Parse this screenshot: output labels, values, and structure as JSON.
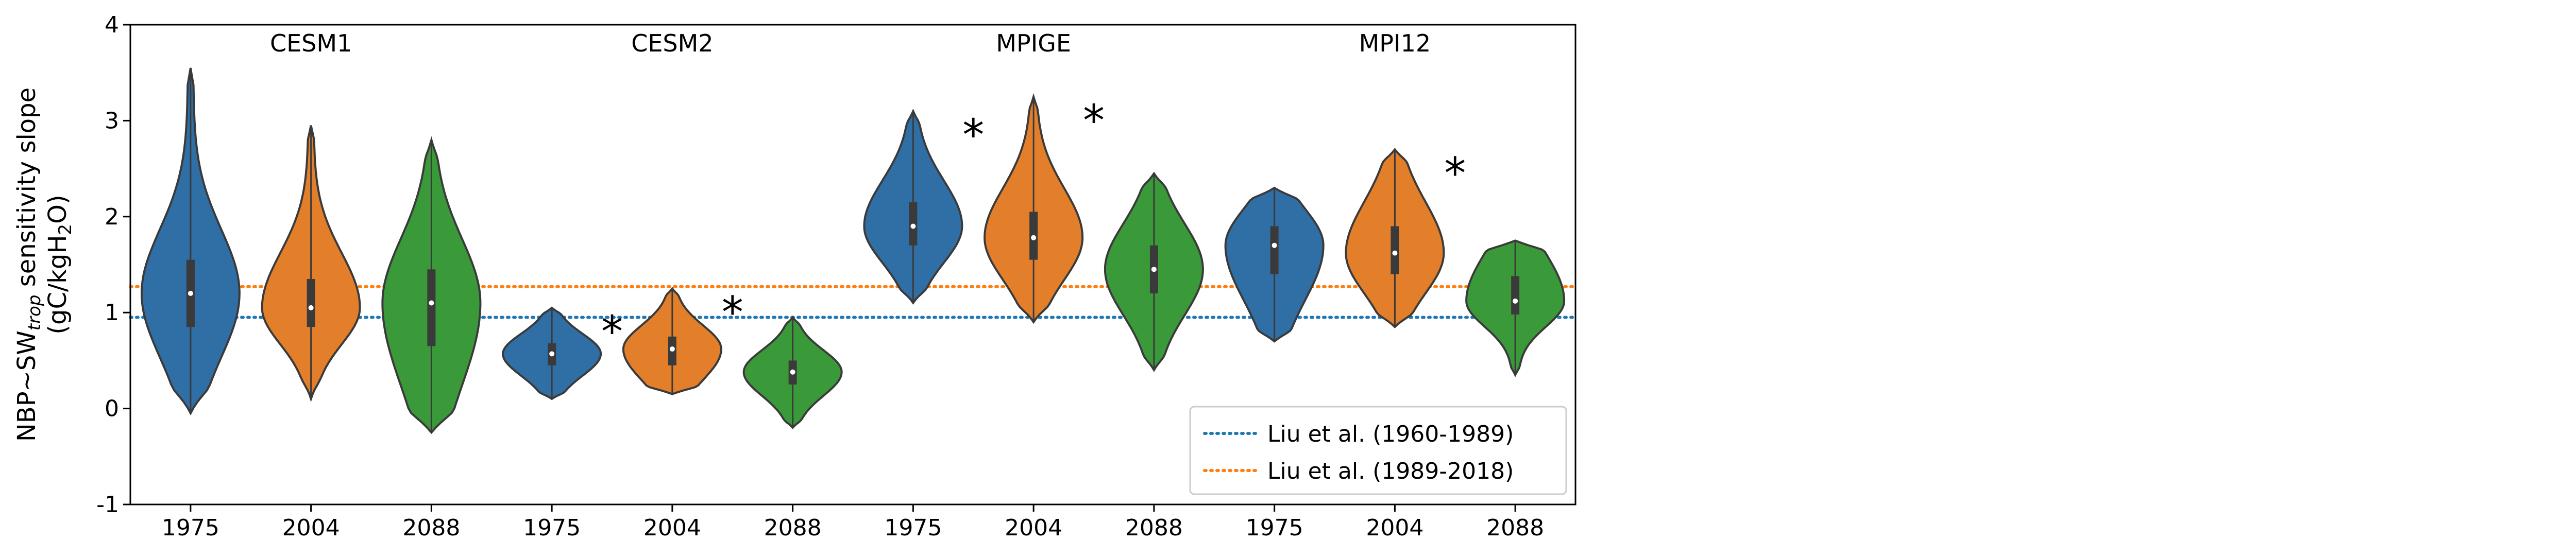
{
  "chart_data": {
    "type": "violin",
    "ylabel_main": "NBP~SW",
    "ylabel_sub": "trop",
    "ylabel_rest": " sensitivity slope",
    "ylabel2_pre": "(gC/kgH",
    "ylabel2_sub": "2",
    "ylabel2_post": "O)",
    "ylim": [
      -1,
      4
    ],
    "yticks": [
      "-1",
      "0",
      "1",
      "2",
      "3",
      "4"
    ],
    "legend_position": "lower-right",
    "colors": {
      "1975": "#2f6fa6",
      "2004": "#e37f2b",
      "2088": "#3a9a3a",
      "liu_early": "#1f77b4",
      "liu_late": "#ff7f0e"
    },
    "reference_lines": [
      {
        "label": "Liu et al. (1960-1989)",
        "value": 0.95,
        "color": "#1f77b4"
      },
      {
        "label": "Liu et al. (1989-2018)",
        "value": 1.27,
        "color": "#ff7f0e"
      }
    ],
    "groups": [
      {
        "name": "CESM1",
        "violins": [
          {
            "year": "1975",
            "min": -0.05,
            "q1": 0.85,
            "median": 1.2,
            "q3": 1.55,
            "max": 3.55
          },
          {
            "year": "2004",
            "min": 0.1,
            "q1": 0.85,
            "median": 1.05,
            "q3": 1.35,
            "max": 2.95
          },
          {
            "year": "2088",
            "min": -0.25,
            "q1": 0.65,
            "median": 1.1,
            "q3": 1.45,
            "max": 2.8
          }
        ],
        "asterisks": []
      },
      {
        "name": "CESM2",
        "violins": [
          {
            "year": "1975",
            "min": 0.1,
            "q1": 0.45,
            "median": 0.57,
            "q3": 0.68,
            "max": 1.05
          },
          {
            "year": "2004",
            "min": 0.15,
            "q1": 0.45,
            "median": 0.62,
            "q3": 0.75,
            "max": 1.25
          },
          {
            "year": "2088",
            "min": -0.2,
            "q1": 0.25,
            "median": 0.38,
            "q3": 0.5,
            "max": 0.95
          }
        ],
        "asterisks": [
          "1975",
          "2004"
        ]
      },
      {
        "name": "MPIGE",
        "violins": [
          {
            "year": "1975",
            "min": 1.1,
            "q1": 1.7,
            "median": 1.9,
            "q3": 2.15,
            "max": 3.1
          },
          {
            "year": "2004",
            "min": 0.9,
            "q1": 1.55,
            "median": 1.78,
            "q3": 2.05,
            "max": 3.25
          },
          {
            "year": "2088",
            "min": 0.4,
            "q1": 1.2,
            "median": 1.45,
            "q3": 1.7,
            "max": 2.45
          }
        ],
        "asterisks": [
          "1975",
          "2004"
        ]
      },
      {
        "name": "MPI12",
        "violins": [
          {
            "year": "1975",
            "min": 0.7,
            "q1": 1.4,
            "median": 1.7,
            "q3": 1.9,
            "max": 2.3
          },
          {
            "year": "2004",
            "min": 0.85,
            "q1": 1.4,
            "median": 1.62,
            "q3": 1.9,
            "max": 2.7
          },
          {
            "year": "2088",
            "min": 0.35,
            "q1": 0.98,
            "median": 1.12,
            "q3": 1.38,
            "max": 1.75
          }
        ],
        "asterisks": [
          "2004"
        ]
      }
    ],
    "asterisk_text": "*"
  }
}
